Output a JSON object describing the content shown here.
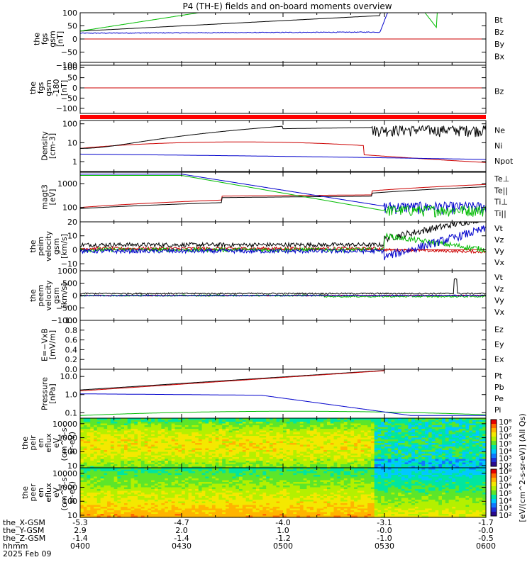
{
  "title": "P4 (TH-E) fields and on-board moments overview",
  "chart_data": {
    "type": "line",
    "x_tick_labels": {
      "x_gsm": [
        "-5.3",
        "-4.7",
        "-4.0",
        "-3.1",
        "-1.7"
      ],
      "y_gsm": [
        "2.9",
        "2.0",
        "1.0",
        "-0.0",
        "-0.0"
      ],
      "z_gsm": [
        "-1.4",
        "-1.4",
        "-1.2",
        "-1.0",
        "-0.5"
      ],
      "hhmm": [
        "0400",
        "0430",
        "0500",
        "0530",
        "0600"
      ]
    },
    "x_row_labels": [
      "the_X-GSM",
      "the_Y-GSM",
      "the_Z-GSM",
      "hhmm",
      "2025 Feb 09"
    ],
    "x_range_hhmm": [
      "0400",
      "0600"
    ],
    "panels": [
      {
        "id": "fgs",
        "ylabel": [
          "the",
          "fgs",
          "gsm",
          "[nT]"
        ],
        "ylim": [
          -100,
          100
        ],
        "yticks": [
          "100",
          "50",
          "0",
          "−50",
          "−100"
        ],
        "legend": [
          {
            "name": "Bt",
            "color": "#000000"
          },
          {
            "name": "Bz",
            "color": "#cc0000"
          },
          {
            "name": "By",
            "color": "#00bb00"
          },
          {
            "name": "Bx",
            "color": "#0000cc"
          }
        ]
      },
      {
        "id": "fgs_dsl",
        "ylabel": [
          "the",
          "fgs",
          "gsm",
          "-180",
          "[nT]"
        ],
        "ylim": [
          -125,
          125
        ],
        "yticks": [
          "100",
          "50",
          "0",
          "−50",
          "−100"
        ],
        "legend": [
          {
            "name": "Bz",
            "color": "#cc0000"
          }
        ]
      },
      {
        "id": "density",
        "ylabel": [
          "Density",
          "[cm-3]"
        ],
        "yscale": "log",
        "ylim": [
          0.3,
          150
        ],
        "yticks": [
          "100",
          "10",
          "1"
        ],
        "legend": [
          {
            "name": "Ne",
            "color": "#cc0000"
          },
          {
            "name": "Ni",
            "color": "#000000"
          },
          {
            "name": "Npot",
            "color": "#0000cc"
          }
        ]
      },
      {
        "id": "temperature",
        "ylabel": [
          "magt3",
          "[eV]"
        ],
        "yscale": "log",
        "ylim": [
          25,
          3000
        ],
        "yticks": [
          "1000",
          "100"
        ],
        "legend": [
          {
            "name": "Te⊥",
            "color": "#cc0000"
          },
          {
            "name": "Te||",
            "color": "#000000"
          },
          {
            "name": "Ti⊥",
            "color": "#0000cc"
          },
          {
            "name": "Ti||",
            "color": "#00bb00"
          }
        ]
      },
      {
        "id": "peim_velocity",
        "ylabel": [
          "the",
          "peim",
          "velocity",
          "gsm",
          "[km/s]"
        ],
        "ylim": [
          -15,
          20
        ],
        "yticks": [
          "20",
          "10",
          "0",
          "−10"
        ],
        "legend": [
          {
            "name": "Vt",
            "color": "#000000"
          },
          {
            "name": "Vz",
            "color": "#cc0000"
          },
          {
            "name": "Vy",
            "color": "#00bb00"
          },
          {
            "name": "Vx",
            "color": "#0000cc"
          }
        ]
      },
      {
        "id": "peem_velocity",
        "ylabel": [
          "the",
          "peem",
          "velocity",
          "gsm",
          "[km/s]"
        ],
        "ylim": [
          -1000,
          1000
        ],
        "yticks": [
          "1000",
          "500",
          "0",
          "−500",
          "−1000"
        ],
        "legend": [
          {
            "name": "Vt",
            "color": "#000000"
          },
          {
            "name": "Vz",
            "color": "#cc0000"
          },
          {
            "name": "Vy",
            "color": "#00bb00"
          },
          {
            "name": "Vx",
            "color": "#0000cc"
          }
        ]
      },
      {
        "id": "efield",
        "ylabel": [
          "E=−VxB",
          "[mV/m]"
        ],
        "ylim": [
          0,
          1
        ],
        "yticks": [
          "1.0",
          "0.8",
          "0.6",
          "0.4",
          "0.2",
          "0.0"
        ],
        "legend": [
          {
            "name": "Ez",
            "color": "#cc0000"
          },
          {
            "name": "Ey",
            "color": "#00bb00"
          },
          {
            "name": "Ex",
            "color": "#0000cc"
          }
        ]
      },
      {
        "id": "pressure",
        "ylabel": [
          "Pressure",
          "[nPa]"
        ],
        "yscale": "log",
        "ylim": [
          0.05,
          25
        ],
        "yticks": [
          "10.0",
          "1.0",
          "0.1"
        ],
        "legend": [
          {
            "name": "Pt",
            "color": "#000000"
          },
          {
            "name": "Pb",
            "color": "#cc0000"
          },
          {
            "name": "Pe",
            "color": "#00bb00"
          },
          {
            "name": "Pi",
            "color": "#0000cc"
          }
        ]
      },
      {
        "id": "peir_spec",
        "type": "heatmap",
        "ylabel": [
          "the",
          "peir",
          "en",
          "eflux",
          "eV",
          "(cm^2-s-",
          "sr-eV)"
        ],
        "yscale": "log",
        "ylim": [
          7,
          25000
        ],
        "yticks": [
          "10000",
          "1000",
          "100",
          "10"
        ]
      },
      {
        "id": "peer_spec",
        "type": "heatmap",
        "ylabel": [
          "the",
          "peer",
          "en",
          "eflux",
          "eV",
          "(cm^2-s-",
          "sr-eV)"
        ],
        "yscale": "log",
        "ylim": [
          7,
          25000
        ],
        "yticks": [
          "10000",
          "1000",
          "100",
          "10"
        ]
      }
    ],
    "colorbar": {
      "label": "[eV/(cm^2-s-sr-eV)] (All Qs)",
      "ticks_upper": [
        "10⁸",
        "10⁷",
        "10⁶",
        "10⁵",
        "10⁴",
        "10³",
        "10²"
      ],
      "ticks_lower": [
        "10⁸",
        "10⁷",
        "10⁶",
        "10⁵",
        "10⁴",
        "10³",
        "10²"
      ]
    }
  }
}
